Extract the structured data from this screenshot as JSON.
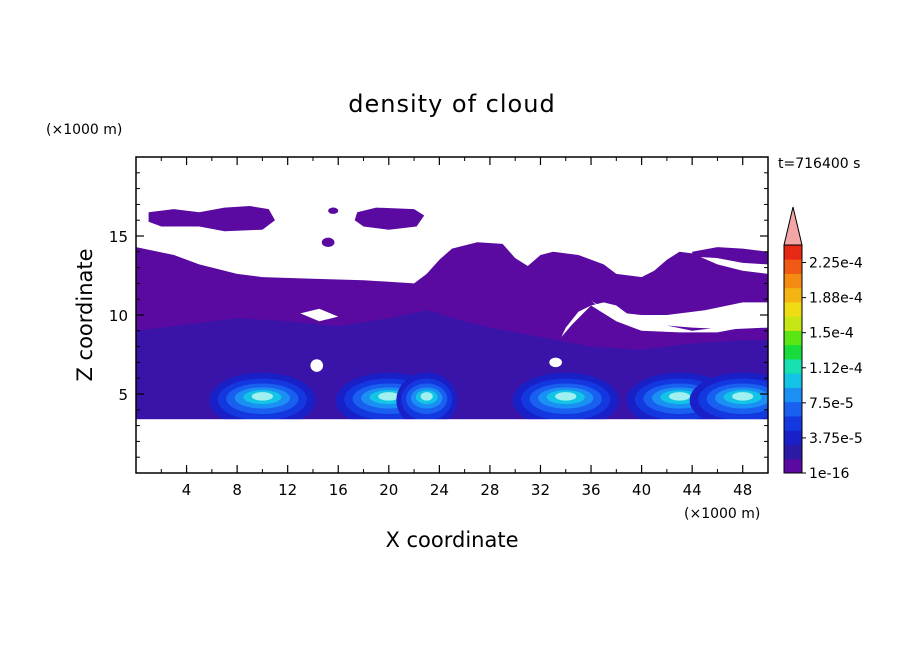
{
  "chart_data": {
    "type": "heatmap",
    "title": "density of cloud",
    "time_label": "t=716400 s",
    "xlabel": "X coordinate",
    "ylabel": "Z coordinate",
    "x_unit": "(×1000 m)",
    "y_unit": "(×1000 m)",
    "xlim": [
      0,
      50
    ],
    "ylim": [
      0,
      20
    ],
    "x_ticks": [
      "4",
      "8",
      "12",
      "16",
      "20",
      "24",
      "28",
      "32",
      "36",
      "40",
      "44",
      "48"
    ],
    "y_ticks": [
      "5",
      "10",
      "15"
    ],
    "colorbar": {
      "levels": [
        "1e-16",
        "3.75e-5",
        "7.5e-5",
        "1.12e-4",
        "1.5e-4",
        "1.88e-4",
        "2.25e-4"
      ],
      "colors": [
        "#5a0aa0",
        "#2a1aa6",
        "#1a20c8",
        "#1438e0",
        "#1a60f0",
        "#1a90f4",
        "#14c4e6",
        "#18e0b0",
        "#18dc3c",
        "#5ae614",
        "#c8e614",
        "#f0dc14",
        "#f4b414",
        "#f48c14",
        "#f05a14",
        "#e62814"
      ],
      "overflow_color": "#f4a6a6"
    },
    "field": {
      "background_color": "#5a0aa0",
      "deep_layer_color": "#3a14a8",
      "core_colors": [
        "#1a20c8",
        "#1438e0",
        "#1a60f0",
        "#1a90f4",
        "#14c4e6",
        "#a0f0f0"
      ],
      "base_height": 3.4,
      "core_centers_x": [
        10,
        20,
        23,
        34,
        43,
        48
      ],
      "core_height": 4.6
    }
  }
}
